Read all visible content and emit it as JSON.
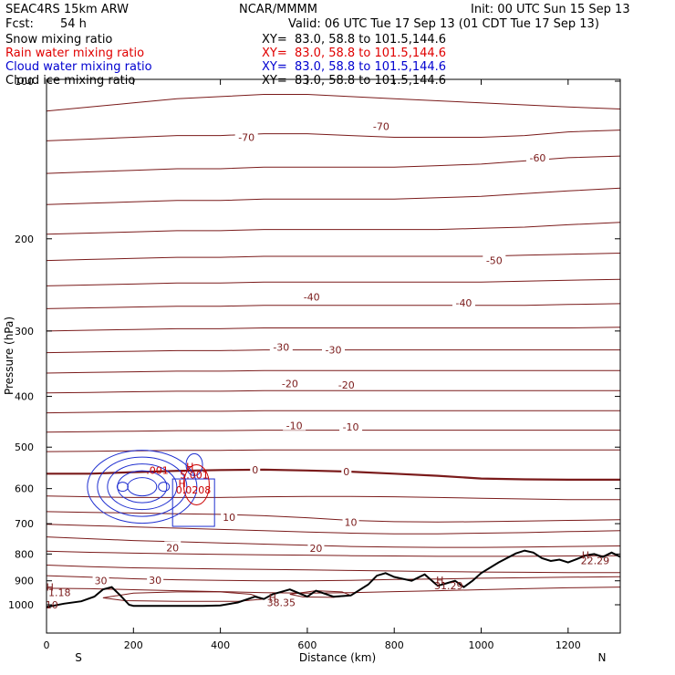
{
  "header": {
    "model": "SEAC4RS 15km ARW",
    "center": "NCAR/MMMM",
    "init": "Init: 00 UTC Sun 15 Sep 13",
    "fcst_label": "Fcst:",
    "fcst_value": "54 h",
    "valid": "Valid: 06 UTC Tue 17 Sep 13 (01 CDT Tue 17 Sep 13)"
  },
  "fields": [
    {
      "name": "Snow mixing ratio",
      "xy": "XY=  83.0, 58.8 to 101.5,144.6",
      "color": "#000000"
    },
    {
      "name": "Rain water mixing ratio",
      "xy": "XY=  83.0, 58.8 to 101.5,144.6",
      "color": "#e00000"
    },
    {
      "name": "Cloud water mixing ratio",
      "xy": "XY=  83.0, 58.8 to 101.5,144.6",
      "color": "#0000d0"
    },
    {
      "name": "Cloud ice mixing ratio",
      "xy": "XY=  83.0, 58.8 to 101.5,144.6",
      "color": "#000000"
    }
  ],
  "colors": {
    "temperature": "#7a1a1a",
    "freezing": "#7a1a1a",
    "cloud_water": "#1f2fd0",
    "rain": "#cc0000",
    "terrain": "#000000"
  },
  "chart_data": {
    "type": "line",
    "xlabel": "Distance (km)",
    "ylabel": "Pressure (hPa)",
    "xlim": [
      0,
      1320
    ],
    "ylim": [
      1050,
      100
    ],
    "y_scale": "log",
    "x_ticks": [
      0,
      200,
      400,
      600,
      800,
      1000,
      1200
    ],
    "y_ticks": [
      100,
      200,
      300,
      400,
      500,
      600,
      700,
      800,
      900,
      1000
    ],
    "x_tick_labels": [
      "0",
      "200",
      "400",
      "600",
      "800",
      "1000",
      "1200"
    ],
    "y_tick_labels": [
      "100",
      "200",
      "300",
      "400",
      "500",
      "600",
      "700",
      "800",
      "900",
      "1000"
    ],
    "endpoint_left": "S",
    "endpoint_right": "N",
    "temperature_contour_labels": [
      {
        "text": "-70",
        "x": 460,
        "p": 128
      },
      {
        "text": "-70",
        "x": 770,
        "p": 122
      },
      {
        "text": "-60",
        "x": 1130,
        "p": 140
      },
      {
        "text": "-50",
        "x": 1030,
        "p": 220
      },
      {
        "text": "-40",
        "x": 610,
        "p": 258
      },
      {
        "text": "-40",
        "x": 960,
        "p": 265
      },
      {
        "text": "-30",
        "x": 540,
        "p": 322
      },
      {
        "text": "-30",
        "x": 660,
        "p": 326
      },
      {
        "text": "-20",
        "x": 560,
        "p": 378
      },
      {
        "text": "-20",
        "x": 690,
        "p": 380
      },
      {
        "text": "-10",
        "x": 570,
        "p": 455
      },
      {
        "text": "-10",
        "x": 700,
        "p": 457
      },
      {
        "text": "0",
        "x": 480,
        "p": 552
      },
      {
        "text": "0",
        "x": 690,
        "p": 557
      },
      {
        "text": "10",
        "x": 420,
        "p": 680
      },
      {
        "text": "10",
        "x": 700,
        "p": 695
      },
      {
        "text": "20",
        "x": 290,
        "p": 778
      },
      {
        "text": "20",
        "x": 620,
        "p": 780
      },
      {
        "text": "30",
        "x": 125,
        "p": 900
      },
      {
        "text": "30",
        "x": 250,
        "p": 898
      }
    ],
    "extrema_labels": [
      {
        "text": "H",
        "x": 8,
        "p": 925
      },
      {
        "text": "1.18",
        "x": 30,
        "p": 948
      },
      {
        "text": "H",
        "x": 520,
        "p": 968
      },
      {
        "text": "38.35",
        "x": 540,
        "p": 990
      },
      {
        "text": "H",
        "x": 905,
        "p": 897
      },
      {
        "text": "31.29",
        "x": 925,
        "p": 920
      },
      {
        "text": "H",
        "x": 1240,
        "p": 804
      },
      {
        "text": "22.29",
        "x": 1262,
        "p": 823
      },
      {
        "text": "10",
        "x": 12,
        "p": 1000
      },
      {
        "text": "H",
        "x": 330,
        "p": 545
      },
      {
        "text": "5.001",
        "x": 340,
        "p": 565
      },
      {
        "text": "H",
        "x": 312,
        "p": 587
      },
      {
        "text": "0.0208",
        "x": 338,
        "p": 603
      },
      {
        "text": ".001",
        "x": 255,
        "p": 553
      }
    ],
    "temperature_contours": [
      {
        "p": [
          114,
          112,
          110,
          108,
          107,
          106,
          106,
          107,
          108,
          109,
          110,
          111,
          112,
          113
        ]
      },
      {
        "p": [
          130,
          129,
          128,
          127,
          127,
          126,
          126,
          127,
          128,
          128,
          128,
          127,
          125,
          124
        ]
      },
      {
        "p": [
          150,
          149,
          148,
          147,
          147,
          146,
          146,
          146,
          146,
          145,
          144,
          142,
          140,
          139
        ]
      },
      {
        "p": [
          172,
          171,
          170,
          169,
          169,
          168,
          168,
          168,
          168,
          167,
          166,
          164,
          162,
          160
        ]
      },
      {
        "p": [
          196,
          195,
          194,
          193,
          193,
          192,
          192,
          192,
          192,
          192,
          191,
          190,
          188,
          186
        ]
      },
      {
        "p": [
          220,
          219,
          218,
          217,
          217,
          216,
          216,
          216,
          216,
          216,
          216,
          215,
          214,
          213
        ]
      },
      {
        "p": [
          246,
          245,
          244,
          243,
          243,
          242,
          242,
          242,
          242,
          242,
          242,
          241,
          240,
          239
        ]
      },
      {
        "p": [
          272,
          271,
          270,
          269,
          269,
          268,
          268,
          268,
          268,
          268,
          268,
          268,
          267,
          266
        ]
      },
      {
        "p": [
          300,
          299,
          298,
          297,
          297,
          296,
          296,
          296,
          296,
          296,
          296,
          296,
          296,
          295
        ]
      },
      {
        "p": [
          330,
          329,
          328,
          327,
          327,
          326,
          326,
          326,
          326,
          326,
          326,
          326,
          326,
          326
        ]
      },
      {
        "p": [
          361,
          360,
          359,
          358,
          358,
          357,
          357,
          357,
          357,
          357,
          357,
          357,
          357,
          357
        ]
      },
      {
        "p": [
          394,
          393,
          392,
          391,
          391,
          390,
          390,
          390,
          390,
          390,
          390,
          390,
          390,
          390
        ]
      },
      {
        "p": [
          430,
          429,
          428,
          427,
          427,
          426,
          426,
          426,
          426,
          426,
          426,
          426,
          426,
          426
        ]
      },
      {
        "p": [
          468,
          467,
          466,
          465,
          465,
          464,
          464,
          464,
          464,
          464,
          464,
          464,
          464,
          464
        ]
      },
      {
        "p": [
          510,
          509,
          508,
          507,
          507,
          506,
          506,
          506,
          506,
          506,
          506,
          506,
          506,
          506
        ]
      },
      {
        "p": [
          562,
          562,
          558,
          555,
          553,
          552,
          554,
          557,
          562,
          567,
          574,
          576,
          577,
          577
        ],
        "bold": true
      },
      {
        "p": [
          620,
          622,
          624,
          624,
          624,
          622,
          621,
          621,
          622,
          624,
          626,
          628,
          630,
          630
        ]
      },
      {
        "p": [
          664,
          666,
          668,
          670,
          672,
          676,
          682,
          690,
          694,
          695,
          694,
          692,
          690,
          688
        ]
      },
      {
        "p": [
          702,
          706,
          710,
          714,
          718,
          722,
          726,
          730,
          732,
          732,
          730,
          728,
          725,
          722
        ]
      },
      {
        "p": [
          742,
          748,
          754,
          758,
          762,
          766,
          770,
          774,
          776,
          777,
          777,
          776,
          774,
          772
        ]
      },
      {
        "p": [
          790,
          794,
          797,
          799,
          801,
          803,
          804,
          806,
          807,
          808,
          808,
          808,
          807,
          806
        ]
      },
      {
        "p": [
          840,
          846,
          850,
          852,
          854,
          856,
          858,
          860,
          862,
          864,
          866,
          867,
          868,
          868
        ]
      },
      {
        "p": [
          880,
          886,
          892,
          896,
          898,
          900,
          900,
          898,
          895,
          893,
          890,
          888,
          886,
          884
        ]
      },
      {
        "p": [
          930,
          932,
          936,
          940,
          944,
          948,
          950,
          948,
          944,
          940,
          936,
          932,
          928,
          925
        ]
      }
    ],
    "contour_x": [
      0,
      100,
      200,
      300,
      400,
      500,
      600,
      700,
      800,
      900,
      1000,
      1100,
      1200,
      1320
    ],
    "terrain": {
      "x": [
        0,
        40,
        80,
        110,
        130,
        150,
        170,
        190,
        200,
        240,
        300,
        360,
        400,
        440,
        480,
        500,
        520,
        560,
        600,
        620,
        660,
        700,
        740,
        760,
        780,
        800,
        840,
        870,
        880,
        900,
        920,
        940,
        960,
        980,
        1000,
        1040,
        1080,
        1100,
        1120,
        1140,
        1160,
        1180,
        1200,
        1220,
        1240,
        1260,
        1280,
        1300,
        1320
      ],
      "p": [
        1010,
        995,
        985,
        965,
        935,
        925,
        960,
        1000,
        1005,
        1005,
        1005,
        1005,
        1003,
        990,
        965,
        975,
        955,
        935,
        965,
        940,
        965,
        960,
        915,
        880,
        870,
        885,
        900,
        875,
        890,
        920,
        910,
        900,
        925,
        900,
        870,
        830,
        798,
        788,
        795,
        815,
        825,
        820,
        830,
        818,
        805,
        800,
        810,
        795,
        810
      ]
    }
  }
}
